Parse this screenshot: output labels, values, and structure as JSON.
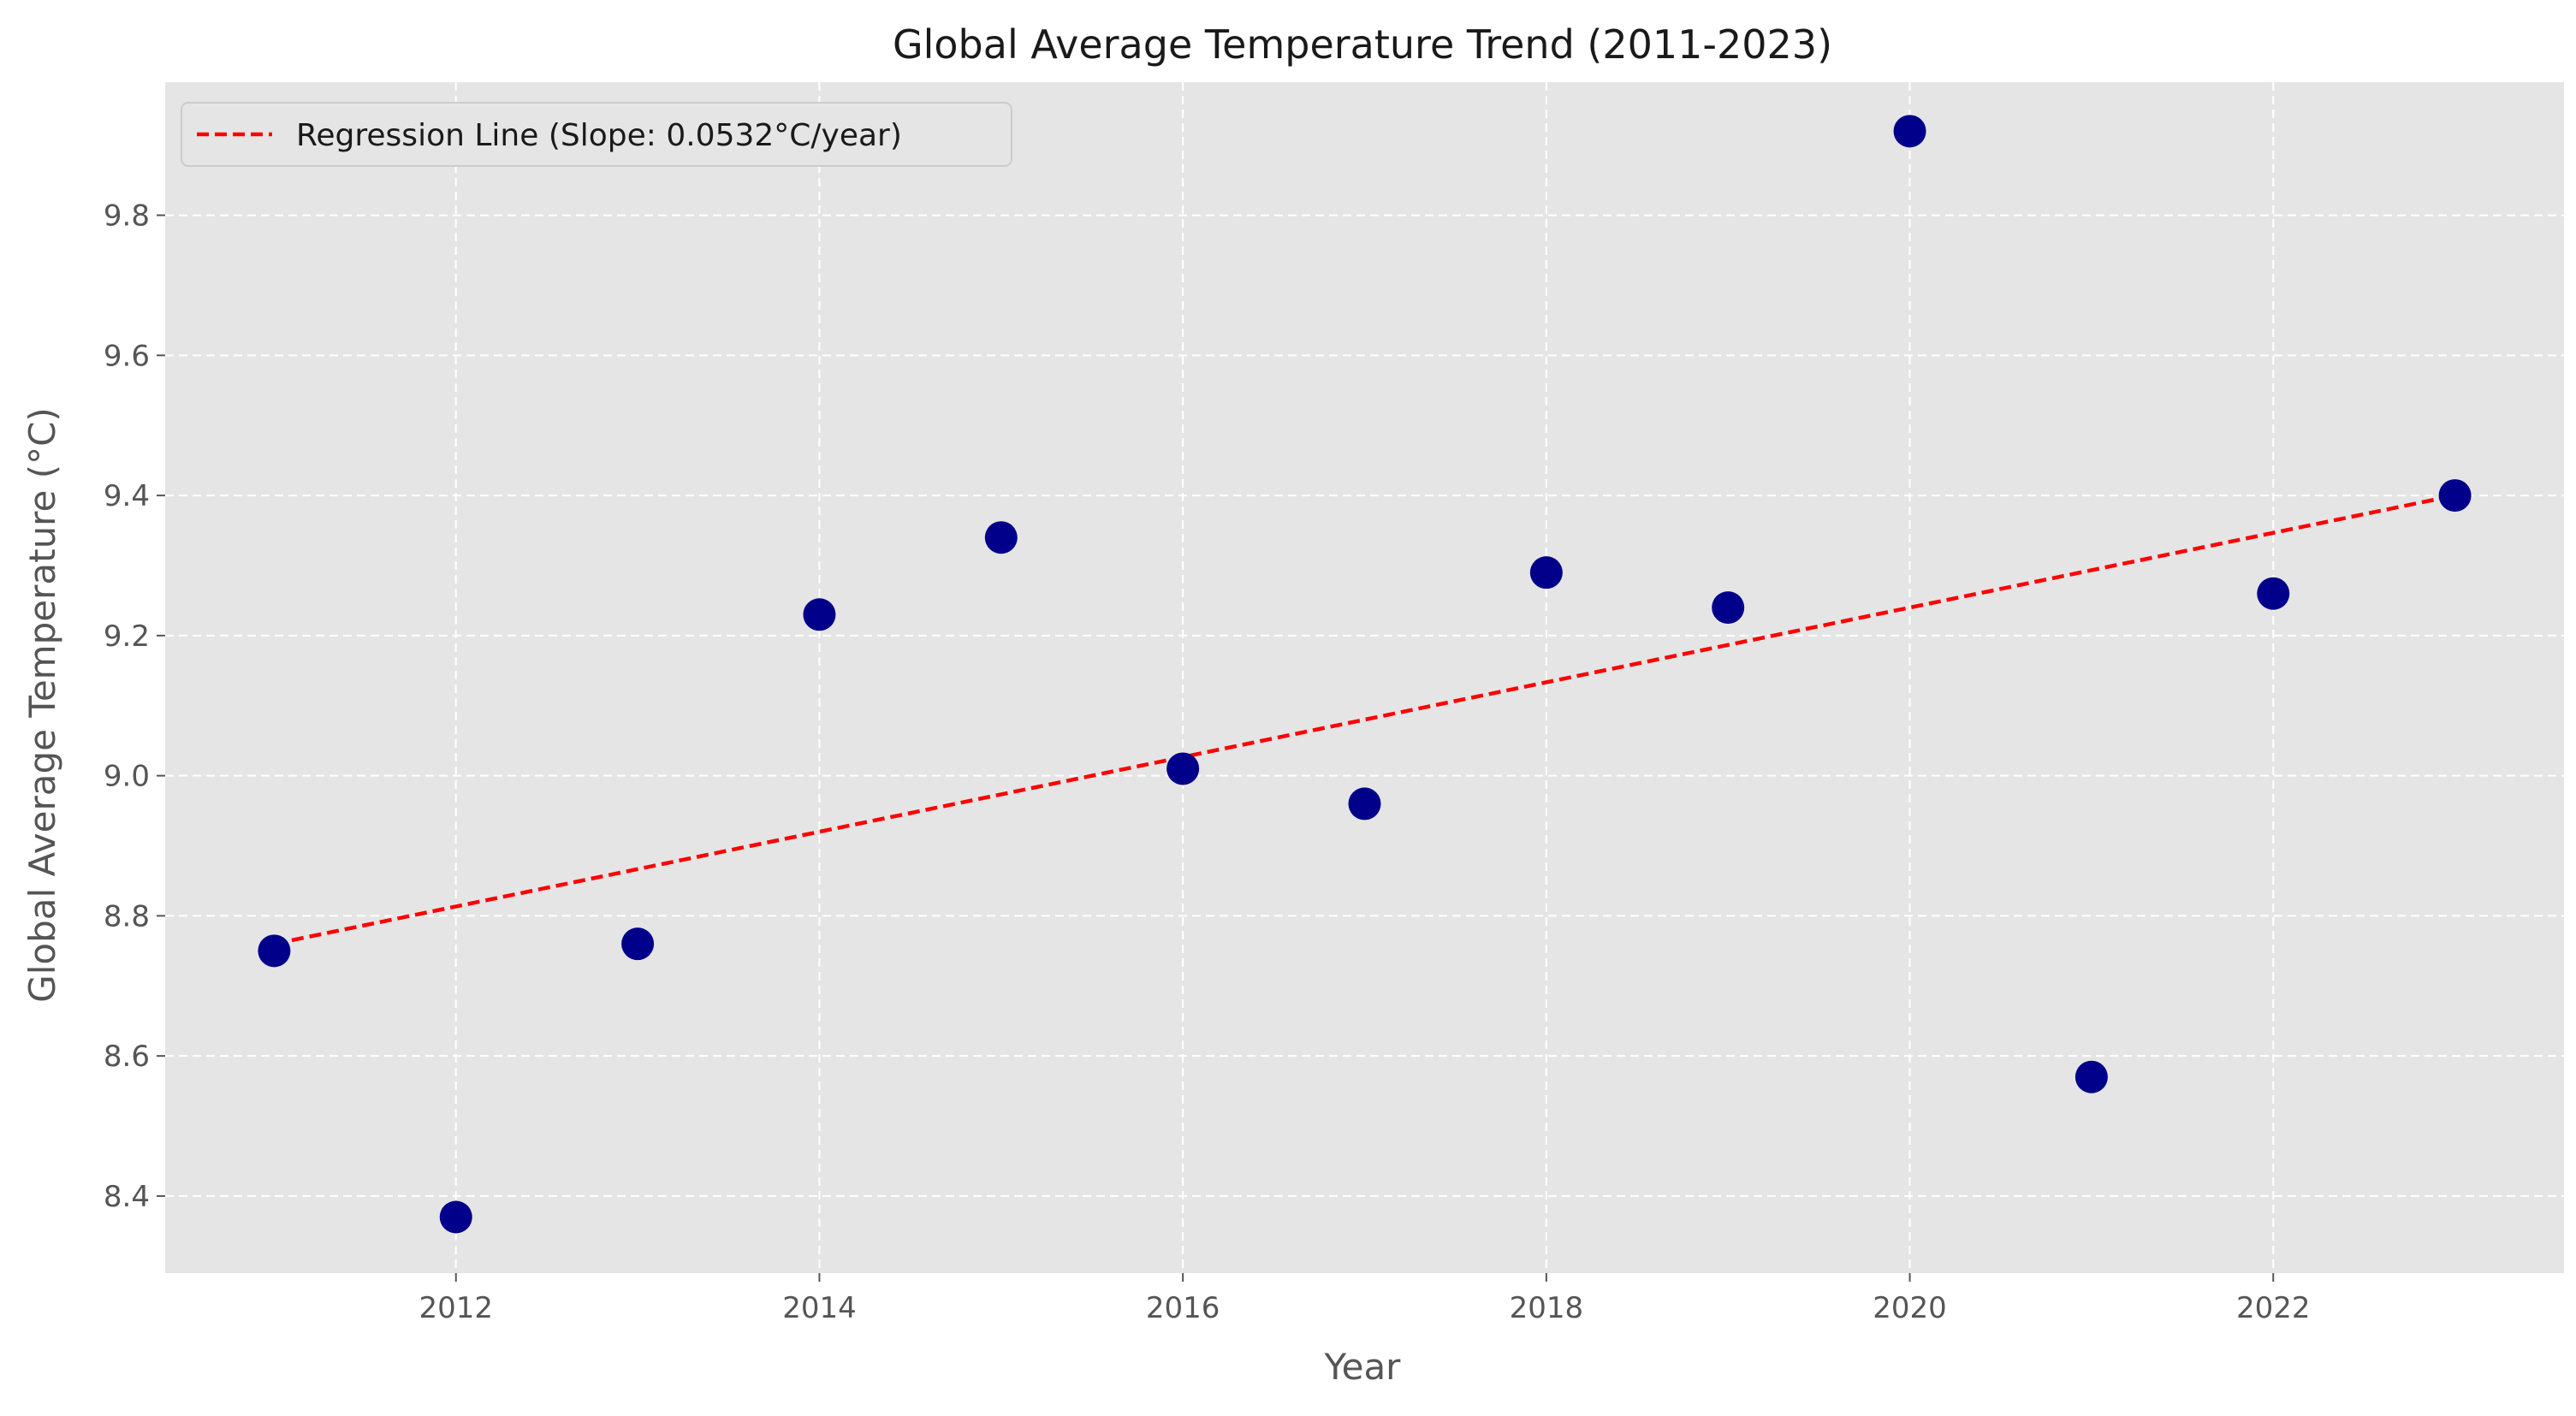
{
  "chart_data": {
    "type": "scatter",
    "title": "Global Average Temperature Trend (2011-2023)",
    "xlabel": "Year",
    "ylabel": "Global Average Temperature (°C)",
    "xlim": [
      2010.4,
      2023.6
    ],
    "ylim": [
      8.29,
      9.99
    ],
    "xticks": [
      2012,
      2014,
      2016,
      2018,
      2020,
      2022
    ],
    "xtick_labels": [
      "2012",
      "2014",
      "2016",
      "2018",
      "2020",
      "2022"
    ],
    "yticks": [
      8.4,
      8.6,
      8.8,
      9.0,
      9.2,
      9.4,
      9.6,
      9.8
    ],
    "ytick_labels": [
      "8.4",
      "8.6",
      "8.8",
      "9.0",
      "9.2",
      "9.4",
      "9.6",
      "9.8"
    ],
    "grid": true,
    "legend_position": "top-left",
    "series": [
      {
        "kind": "scatter",
        "color": "#00008b",
        "x": [
          2011,
          2012,
          2013,
          2014,
          2015,
          2016,
          2017,
          2018,
          2019,
          2020,
          2021,
          2022,
          2023
        ],
        "y": [
          8.75,
          8.37,
          8.76,
          9.23,
          9.34,
          9.01,
          8.96,
          9.29,
          9.24,
          9.92,
          8.57,
          9.26,
          9.4
        ]
      },
      {
        "kind": "line",
        "name": "Regression Line (Slope: 0.0532°C/year)",
        "color": "#ff0000",
        "dash": true,
        "x": [
          2011,
          2023
        ],
        "y": [
          8.76,
          9.4
        ]
      }
    ]
  },
  "colors": {
    "plot_background": "#e5e5e5",
    "grid": "#ffffff",
    "text": "#555555",
    "title": "#1a1a1a"
  }
}
